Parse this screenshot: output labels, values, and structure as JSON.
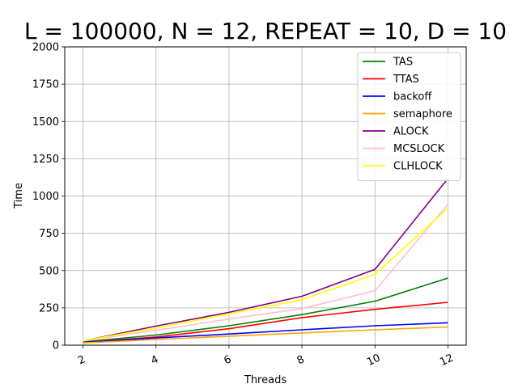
{
  "chart_data": {
    "type": "line",
    "title": "L = 100000, N = 12, REPEAT = 10, D = 10",
    "xlabel": "Threads",
    "ylabel": "Time",
    "x": [
      2,
      4,
      6,
      8,
      10,
      12
    ],
    "xticks": [
      "2",
      "4",
      "6",
      "8",
      "10",
      "12"
    ],
    "yticks": [
      "0",
      "250",
      "500",
      "750",
      "1000",
      "1250",
      "1500",
      "1750",
      "2000"
    ],
    "ylim": [
      0,
      2000
    ],
    "grid": true,
    "legend_position": "top-right",
    "series": [
      {
        "name": "TAS",
        "color": "#008000",
        "values": [
          22,
          68,
          130,
          205,
          295,
          450
        ]
      },
      {
        "name": "TTAS",
        "color": "#ff0000",
        "values": [
          18,
          55,
          110,
          185,
          240,
          287
        ]
      },
      {
        "name": "backoff",
        "color": "#0000ff",
        "values": [
          18,
          48,
          75,
          103,
          130,
          150
        ]
      },
      {
        "name": "semaphore",
        "color": "#ffa500",
        "values": [
          15,
          38,
          60,
          82,
          103,
          122
        ]
      },
      {
        "name": "ALOCK",
        "color": "#800080",
        "values": [
          28,
          128,
          220,
          328,
          508,
          1118
        ]
      },
      {
        "name": "MCSLOCK",
        "color": "#ffc0cb",
        "values": [
          28,
          100,
          175,
          245,
          365,
          945
        ]
      },
      {
        "name": "CLHLOCK",
        "color": "#ffff00",
        "values": [
          30,
          115,
          210,
          305,
          475,
          920
        ]
      }
    ]
  }
}
